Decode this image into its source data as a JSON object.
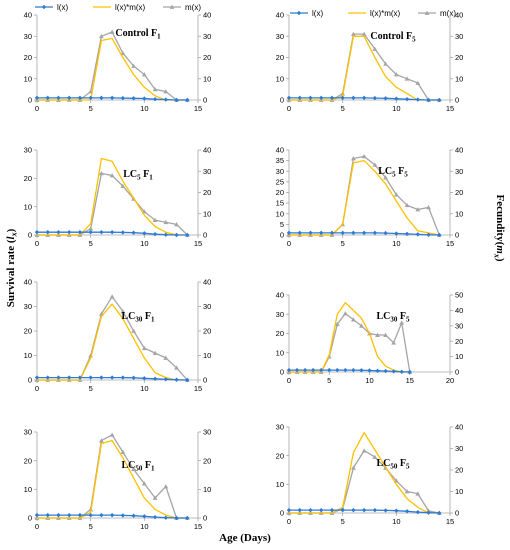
{
  "colors": {
    "lx": "#2e7bd6",
    "lxmx": "#ffc000",
    "mx": "#a5a5a5"
  },
  "legend": [
    "l(x)",
    "l(x)*m(x)",
    "m(x)"
  ],
  "y_left_label": {
    "text": "Survival rate (",
    "var": "l",
    "sub": "x",
    "close": ")"
  },
  "y_right_label": {
    "text": "Fecundity(",
    "var": "m",
    "sub": "x",
    "close": ")"
  },
  "x_label": "Age (Days)",
  "chart_data": [
    {
      "type": "line",
      "title": "Control F1",
      "title_main": "Control F",
      "title_sub": "1",
      "title_tail": "",
      "xticks": [
        0,
        5,
        10,
        15
      ],
      "xlim": [
        0,
        15
      ],
      "ylim": [
        0,
        40
      ],
      "yticks": [
        0,
        10,
        20,
        30,
        40
      ],
      "y2lim": [
        0,
        40
      ],
      "y2ticks": [
        0,
        10,
        20,
        30,
        40
      ],
      "x": [
        0,
        1,
        2,
        3,
        4,
        5,
        6,
        7,
        8,
        9,
        10,
        11,
        12,
        13,
        14
      ],
      "series": [
        {
          "name": "l(x)",
          "axis": "left",
          "values": [
            1,
            1,
            1,
            1,
            1,
            1,
            1,
            1,
            0.9,
            0.8,
            0.7,
            0.4,
            0.2,
            0,
            0
          ]
        },
        {
          "name": "l(x)*m(x)",
          "axis": "left",
          "values": [
            0,
            0,
            0,
            0,
            0,
            0,
            28,
            29,
            20,
            12,
            6,
            2,
            0,
            0,
            0
          ]
        },
        {
          "name": "m(x)",
          "axis": "right",
          "values": [
            0,
            0,
            0,
            0,
            0,
            4,
            30,
            32,
            22,
            16,
            12,
            5,
            4,
            0,
            0
          ]
        }
      ]
    },
    {
      "type": "line",
      "title": "Control F5",
      "title_main": "Control F",
      "title_sub": "5",
      "title_tail": "",
      "xticks": [
        0,
        5,
        10,
        15
      ],
      "xlim": [
        0,
        15
      ],
      "ylim": [
        0,
        40
      ],
      "yticks": [
        0,
        10,
        20,
        30,
        40
      ],
      "y2lim": [
        0,
        40
      ],
      "y2ticks": [
        0,
        10,
        20,
        30,
        40
      ],
      "x": [
        0,
        1,
        2,
        3,
        4,
        5,
        6,
        7,
        8,
        9,
        10,
        11,
        12,
        13,
        14
      ],
      "series": [
        {
          "name": "l(x)",
          "axis": "left",
          "values": [
            1,
            1,
            1,
            1,
            1,
            1,
            1,
            1,
            0.9,
            0.8,
            0.6,
            0.4,
            0.2,
            0,
            0
          ]
        },
        {
          "name": "l(x)*m(x)",
          "axis": "left",
          "values": [
            0,
            0,
            0,
            0,
            0,
            2,
            30,
            30,
            20,
            11,
            6,
            3,
            0,
            0,
            0
          ]
        },
        {
          "name": "m(x)",
          "axis": "right",
          "values": [
            0,
            0,
            0,
            0,
            0,
            3,
            31,
            31,
            24,
            17,
            12,
            10,
            8,
            0,
            0
          ]
        }
      ]
    },
    {
      "type": "line",
      "title": "LC5 F1",
      "title_main": "LC",
      "title_sub": "5",
      "title_tail": " F",
      "title_sub2": "1",
      "xticks": [
        0,
        5,
        10,
        15
      ],
      "xlim": [
        0,
        15
      ],
      "ylim": [
        0,
        30
      ],
      "yticks": [
        0,
        10,
        20,
        30
      ],
      "y2lim": [
        0,
        40
      ],
      "y2ticks": [
        0,
        10,
        20,
        30,
        40
      ],
      "x": [
        0,
        1,
        2,
        3,
        4,
        5,
        6,
        7,
        8,
        9,
        10,
        11,
        12,
        13,
        14
      ],
      "series": [
        {
          "name": "l(x)",
          "axis": "left",
          "values": [
            1,
            1,
            1,
            1,
            1,
            1,
            1,
            1,
            0.9,
            0.8,
            0.6,
            0.3,
            0.1,
            0,
            0
          ]
        },
        {
          "name": "l(x)*m(x)",
          "axis": "left",
          "values": [
            0,
            0,
            0,
            0,
            0,
            4,
            27,
            26,
            19,
            13,
            7,
            3,
            1,
            0,
            0
          ]
        },
        {
          "name": "m(x)",
          "axis": "right",
          "values": [
            0,
            0,
            0,
            0,
            0,
            3,
            29,
            28,
            23,
            17,
            11,
            7,
            6,
            5,
            0
          ]
        }
      ]
    },
    {
      "type": "line",
      "title": "LC5 F5",
      "title_main": "LC",
      "title_sub": "5",
      "title_tail": " F",
      "title_sub2": "5",
      "xticks": [
        0,
        5,
        10,
        15
      ],
      "xlim": [
        0,
        15
      ],
      "ylim": [
        0,
        40
      ],
      "yticks": [
        0,
        5,
        10,
        15,
        20,
        25,
        30,
        35,
        40
      ],
      "y2lim": [
        0,
        40
      ],
      "y2ticks": [
        0,
        10,
        20,
        30,
        40
      ],
      "x": [
        0,
        1,
        2,
        3,
        4,
        5,
        6,
        7,
        8,
        9,
        10,
        11,
        12,
        13,
        14
      ],
      "series": [
        {
          "name": "l(x)",
          "axis": "left",
          "values": [
            1,
            1,
            1,
            1,
            1,
            1,
            1,
            1,
            1,
            0.9,
            0.7,
            0.5,
            0.3,
            0.1,
            0
          ]
        },
        {
          "name": "l(x)*m(x)",
          "axis": "left",
          "values": [
            0,
            0,
            0,
            0,
            0,
            5,
            34,
            35,
            30,
            24,
            16,
            8,
            2,
            1,
            0
          ]
        },
        {
          "name": "m(x)",
          "axis": "right",
          "values": [
            0,
            0,
            0,
            0,
            0,
            5,
            36,
            37,
            33,
            27,
            19,
            14,
            12,
            13,
            0
          ]
        }
      ]
    },
    {
      "type": "line",
      "title": "LC30 F1",
      "title_main": "LC",
      "title_sub": "30",
      "title_tail": " F",
      "title_sub2": "1",
      "xticks": [
        0,
        5,
        10,
        15
      ],
      "xlim": [
        0,
        15
      ],
      "ylim": [
        0,
        40
      ],
      "yticks": [
        0,
        10,
        20,
        30,
        40
      ],
      "y2lim": [
        0,
        40
      ],
      "y2ticks": [
        0,
        10,
        20,
        30,
        40
      ],
      "x": [
        0,
        1,
        2,
        3,
        4,
        5,
        6,
        7,
        8,
        9,
        10,
        11,
        12,
        13,
        14
      ],
      "series": [
        {
          "name": "l(x)",
          "axis": "left",
          "values": [
            1,
            1,
            1,
            1,
            1,
            1,
            1,
            1,
            1,
            0.9,
            0.7,
            0.5,
            0.3,
            0.1,
            0
          ]
        },
        {
          "name": "l(x)*m(x)",
          "axis": "left",
          "values": [
            0,
            0,
            0,
            0,
            0,
            9,
            26,
            31,
            25,
            17,
            9,
            3,
            1,
            0,
            0
          ]
        },
        {
          "name": "m(x)",
          "axis": "right",
          "values": [
            0,
            0,
            0,
            0,
            0,
            10,
            27,
            34,
            28,
            20,
            13,
            11,
            9,
            5,
            0
          ]
        }
      ]
    },
    {
      "type": "line",
      "title": "LC30 F5",
      "title_main": "LC",
      "title_sub": "30",
      "title_tail": " F",
      "title_sub2": "5",
      "xticks": [
        0,
        5,
        10,
        15,
        20
      ],
      "xlim": [
        0,
        20
      ],
      "ylim": [
        0,
        40
      ],
      "yticks": [
        0,
        10,
        20,
        30,
        40
      ],
      "y2lim": [
        0,
        50
      ],
      "y2ticks": [
        0,
        10,
        20,
        30,
        40,
        50
      ],
      "x": [
        0,
        1,
        2,
        3,
        4,
        5,
        6,
        7,
        8,
        9,
        10,
        11,
        12,
        13,
        14,
        15
      ],
      "series": [
        {
          "name": "l(x)",
          "axis": "left",
          "values": [
            1,
            1,
            1,
            1,
            1,
            1,
            1,
            1,
            1,
            0.9,
            0.8,
            0.6,
            0.5,
            0.3,
            0.1,
            0
          ]
        },
        {
          "name": "l(x)*m(x)",
          "axis": "left",
          "values": [
            0,
            0,
            0,
            0,
            0,
            9,
            30,
            36,
            32,
            28,
            20,
            8,
            3,
            1,
            0,
            0
          ]
        },
        {
          "name": "m(x)",
          "axis": "right",
          "values": [
            0,
            0,
            0,
            0,
            0,
            10,
            31,
            38,
            34,
            30,
            25,
            24,
            24,
            19,
            32,
            0
          ]
        }
      ]
    },
    {
      "type": "line",
      "title": "LC50 F1",
      "title_main": "LC",
      "title_sub": "50",
      "title_tail": " F",
      "title_sub2": "1",
      "xticks": [
        0,
        5,
        10,
        15
      ],
      "xlim": [
        0,
        15
      ],
      "ylim": [
        0,
        30
      ],
      "yticks": [
        0,
        10,
        20,
        30
      ],
      "y2lim": [
        0,
        30
      ],
      "y2ticks": [
        0,
        10,
        20,
        30
      ],
      "x": [
        0,
        1,
        2,
        3,
        4,
        5,
        6,
        7,
        8,
        9,
        10,
        11,
        12,
        13,
        14
      ],
      "series": [
        {
          "name": "l(x)",
          "axis": "left",
          "values": [
            1,
            1,
            1,
            1,
            1,
            1,
            1,
            1,
            0.9,
            0.8,
            0.6,
            0.3,
            0.1,
            0,
            0
          ]
        },
        {
          "name": "l(x)*m(x)",
          "axis": "left",
          "values": [
            0,
            0,
            0,
            0,
            0,
            2,
            26,
            27,
            21,
            14,
            7,
            3,
            1,
            0,
            0
          ]
        },
        {
          "name": "m(x)",
          "axis": "right",
          "values": [
            0,
            0,
            0,
            0,
            0,
            3,
            27,
            29,
            23,
            17,
            12,
            7,
            11,
            0,
            0
          ]
        }
      ]
    },
    {
      "type": "line",
      "title": "LC50 F5",
      "title_main": "LC",
      "title_sub": "50",
      "title_tail": " F",
      "title_sub2": "5",
      "xticks": [
        0,
        5,
        10,
        15
      ],
      "xlim": [
        0,
        15
      ],
      "ylim": [
        0,
        30
      ],
      "yticks": [
        0,
        10,
        20,
        30
      ],
      "y2lim": [
        0,
        40
      ],
      "y2ticks": [
        0,
        10,
        20,
        30,
        40
      ],
      "x": [
        0,
        1,
        2,
        3,
        4,
        5,
        6,
        7,
        8,
        9,
        10,
        11,
        12,
        13,
        14
      ],
      "series": [
        {
          "name": "l(x)",
          "axis": "left",
          "values": [
            1,
            1,
            1,
            1,
            1,
            1,
            1,
            1,
            1,
            0.9,
            0.8,
            0.6,
            0.3,
            0.1,
            0
          ]
        },
        {
          "name": "l(x)*m(x)",
          "axis": "left",
          "values": [
            0,
            0,
            0,
            0,
            0,
            2,
            21,
            28,
            22,
            16,
            10,
            5,
            2,
            0,
            0
          ]
        },
        {
          "name": "m(x)",
          "axis": "right",
          "values": [
            0,
            0,
            0,
            0,
            0,
            2,
            21,
            29,
            26,
            21,
            15,
            10,
            9,
            1,
            0
          ]
        }
      ]
    }
  ]
}
